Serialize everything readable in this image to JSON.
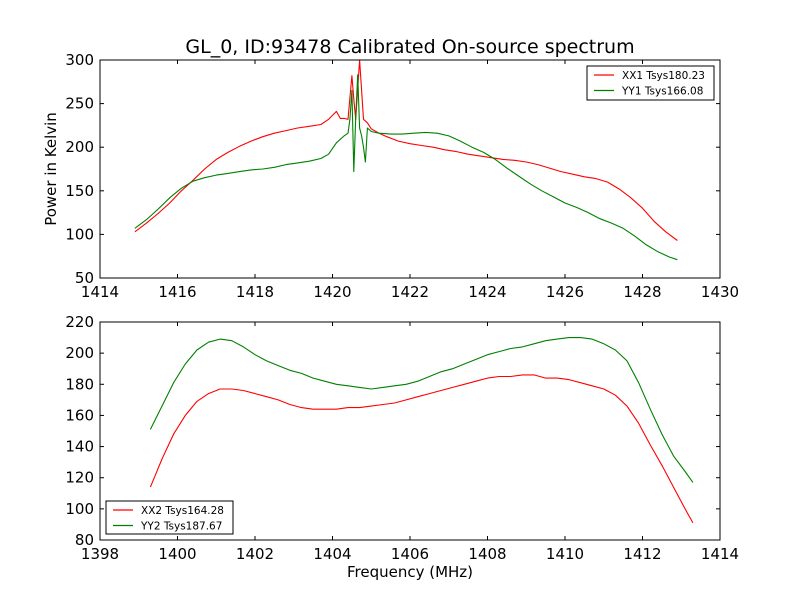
{
  "title": "GL_0, ID:93478 Calibrated On-source spectrum",
  "chart_data": [
    {
      "type": "line",
      "title": "GL_0, ID:93478 Calibrated On-source spectrum",
      "xlabel": "",
      "ylabel": "Power in Kelvin",
      "xlim": [
        1414,
        1430
      ],
      "ylim": [
        50,
        300
      ],
      "xticks": [
        1414,
        1416,
        1418,
        1420,
        1422,
        1424,
        1426,
        1428,
        1430
      ],
      "yticks": [
        50,
        100,
        150,
        200,
        250,
        300
      ],
      "legend_position": "top-right",
      "grid": false,
      "series": [
        {
          "name": "XX1 Tsys180.23",
          "color": "#ff0000",
          "x": [
            1414.9,
            1415.2,
            1415.5,
            1415.8,
            1416.1,
            1416.4,
            1416.7,
            1417.0,
            1417.3,
            1417.6,
            1417.9,
            1418.2,
            1418.5,
            1418.8,
            1419.1,
            1419.4,
            1419.7,
            1419.9,
            1420.1,
            1420.2,
            1420.3,
            1420.4,
            1420.5,
            1420.55,
            1420.6,
            1420.7,
            1420.8,
            1420.9,
            1421.0,
            1421.2,
            1421.4,
            1421.7,
            1422.0,
            1422.3,
            1422.6,
            1422.9,
            1423.2,
            1423.5,
            1423.8,
            1424.1,
            1424.4,
            1424.7,
            1425.0,
            1425.3,
            1425.6,
            1425.9,
            1426.2,
            1426.5,
            1426.8,
            1427.1,
            1427.4,
            1427.7,
            1428.0,
            1428.3,
            1428.6,
            1428.9
          ],
          "y": [
            103,
            113,
            124,
            136,
            150,
            162,
            175,
            186,
            194,
            201,
            207,
            212,
            216,
            219,
            222,
            224,
            226,
            232,
            241,
            233,
            233,
            232,
            282,
            255,
            232,
            300,
            232,
            228,
            221,
            216,
            212,
            207,
            204,
            202,
            200,
            197,
            195,
            192,
            190,
            188,
            186,
            185,
            183,
            180,
            176,
            172,
            169,
            166,
            164,
            160,
            152,
            142,
            130,
            115,
            103,
            93
          ]
        },
        {
          "name": "YY1 Tsys166.08",
          "color": "#008000",
          "x": [
            1414.9,
            1415.2,
            1415.5,
            1415.8,
            1416.1,
            1416.4,
            1416.7,
            1417.0,
            1417.3,
            1417.6,
            1417.9,
            1418.2,
            1418.5,
            1418.8,
            1419.1,
            1419.4,
            1419.7,
            1419.9,
            1420.1,
            1420.3,
            1420.4,
            1420.45,
            1420.5,
            1420.55,
            1420.6,
            1420.65,
            1420.7,
            1420.75,
            1420.8,
            1420.85,
            1420.9,
            1421.0,
            1421.2,
            1421.5,
            1421.8,
            1422.1,
            1422.4,
            1422.7,
            1423.0,
            1423.3,
            1423.6,
            1423.9,
            1424.2,
            1424.5,
            1424.8,
            1425.1,
            1425.4,
            1425.7,
            1426.0,
            1426.3,
            1426.6,
            1426.9,
            1427.2,
            1427.5,
            1427.8,
            1428.1,
            1428.4,
            1428.7,
            1428.9
          ],
          "y": [
            107,
            117,
            129,
            142,
            153,
            161,
            165,
            168,
            170,
            172,
            174,
            175,
            177,
            180,
            182,
            184,
            187,
            192,
            205,
            213,
            216,
            232,
            265,
            172,
            233,
            283,
            222,
            213,
            200,
            183,
            222,
            218,
            216,
            215,
            215,
            216,
            217,
            216,
            213,
            207,
            200,
            194,
            186,
            176,
            167,
            158,
            150,
            143,
            136,
            131,
            125,
            118,
            113,
            107,
            98,
            88,
            80,
            74,
            71
          ]
        }
      ]
    },
    {
      "type": "line",
      "title": "",
      "xlabel": "Frequency (MHz)",
      "ylabel": "",
      "xlim": [
        1398,
        1414
      ],
      "ylim": [
        80,
        220
      ],
      "xticks": [
        1398,
        1400,
        1402,
        1404,
        1406,
        1408,
        1410,
        1412,
        1414
      ],
      "yticks": [
        80,
        100,
        120,
        140,
        160,
        180,
        200,
        220
      ],
      "legend_position": "bottom-left",
      "grid": false,
      "series": [
        {
          "name": "XX2 Tsys164.28",
          "color": "#ff0000",
          "x": [
            1399.3,
            1399.6,
            1399.9,
            1400.2,
            1400.5,
            1400.8,
            1401.1,
            1401.4,
            1401.7,
            1402.0,
            1402.3,
            1402.6,
            1402.9,
            1403.2,
            1403.5,
            1403.8,
            1404.1,
            1404.4,
            1404.7,
            1405.0,
            1405.3,
            1405.6,
            1405.9,
            1406.2,
            1406.5,
            1406.8,
            1407.1,
            1407.4,
            1407.7,
            1408.0,
            1408.3,
            1408.6,
            1408.9,
            1409.2,
            1409.5,
            1409.8,
            1410.1,
            1410.4,
            1410.7,
            1411.0,
            1411.3,
            1411.6,
            1411.9,
            1412.2,
            1412.5,
            1412.8,
            1413.1,
            1413.3
          ],
          "y": [
            114,
            132,
            148,
            160,
            169,
            174,
            177,
            177,
            176,
            174,
            172,
            170,
            167,
            165,
            164,
            164,
            164,
            165,
            165,
            166,
            167,
            168,
            170,
            172,
            174,
            176,
            178,
            180,
            182,
            184,
            185,
            185,
            186,
            186,
            184,
            184,
            183,
            181,
            179,
            177,
            173,
            166,
            155,
            141,
            128,
            114,
            100,
            91
          ]
        },
        {
          "name": "YY2 Tsys187.67",
          "color": "#008000",
          "x": [
            1399.3,
            1399.6,
            1399.9,
            1400.2,
            1400.5,
            1400.8,
            1401.1,
            1401.4,
            1401.7,
            1402.0,
            1402.3,
            1402.6,
            1402.9,
            1403.2,
            1403.5,
            1403.8,
            1404.1,
            1404.4,
            1404.7,
            1405.0,
            1405.3,
            1405.6,
            1405.9,
            1406.2,
            1406.5,
            1406.8,
            1407.1,
            1407.4,
            1407.7,
            1408.0,
            1408.3,
            1408.6,
            1408.9,
            1409.2,
            1409.5,
            1409.8,
            1410.1,
            1410.4,
            1410.7,
            1411.0,
            1411.3,
            1411.6,
            1411.9,
            1412.2,
            1412.5,
            1412.8,
            1413.1,
            1413.3
          ],
          "y": [
            151,
            166,
            181,
            193,
            202,
            207,
            209,
            208,
            204,
            199,
            195,
            192,
            189,
            187,
            184,
            182,
            180,
            179,
            178,
            177,
            178,
            179,
            180,
            182,
            185,
            188,
            190,
            193,
            196,
            199,
            201,
            203,
            204,
            206,
            208,
            209,
            210,
            210,
            209,
            206,
            202,
            195,
            181,
            164,
            148,
            134,
            124,
            117
          ]
        }
      ]
    }
  ]
}
